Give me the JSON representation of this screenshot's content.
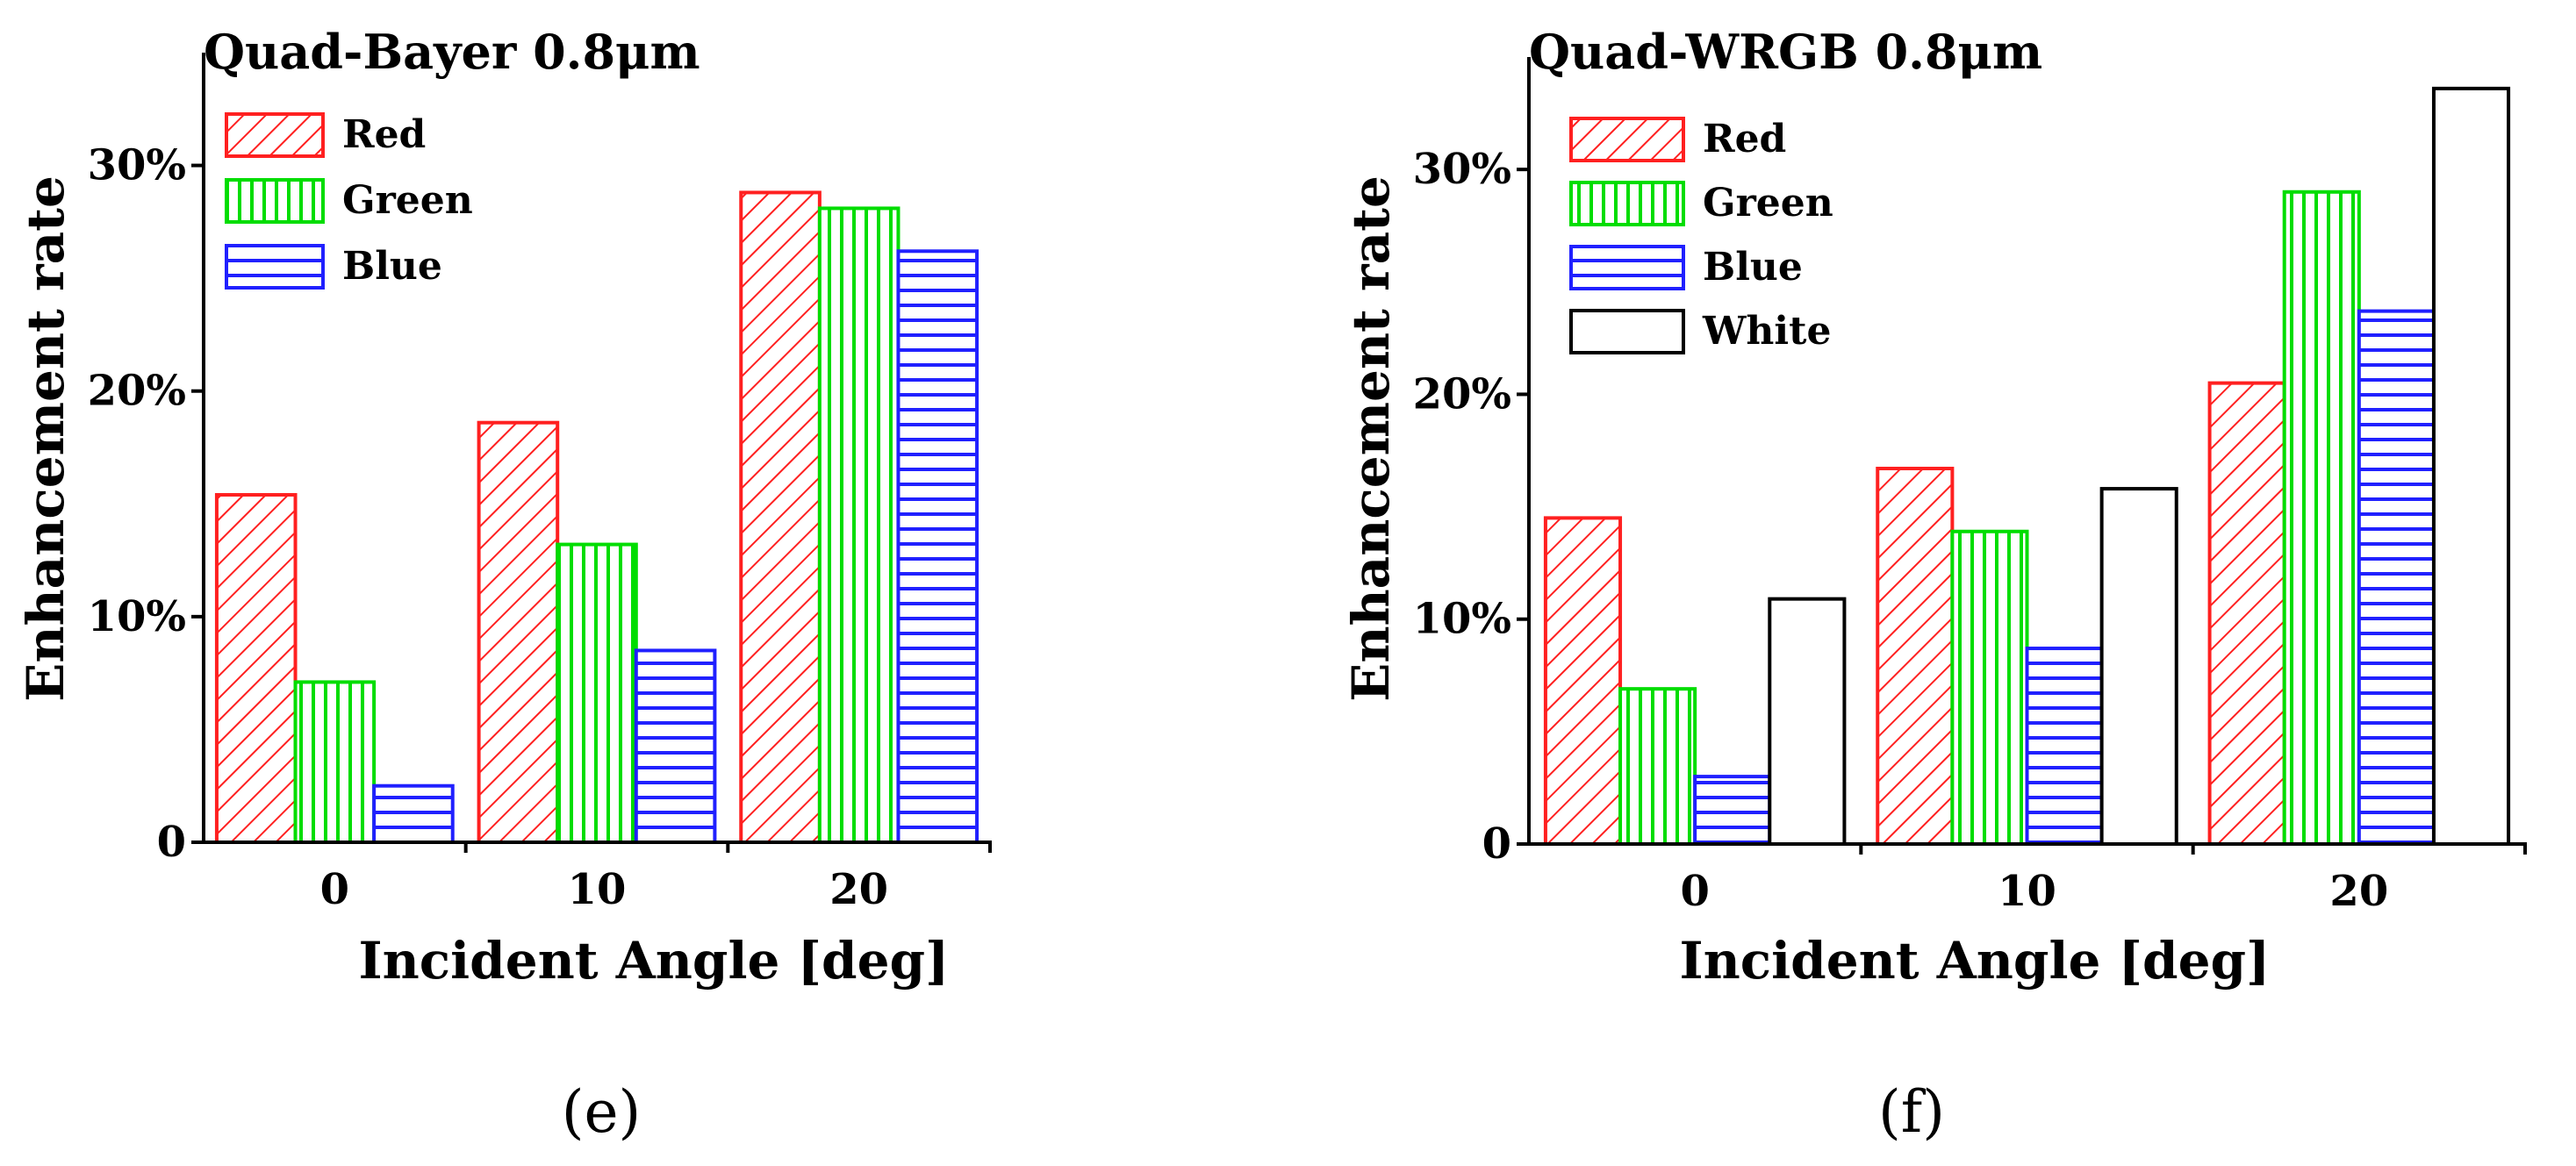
{
  "chart_data": [
    {
      "type": "bar",
      "title": "Quad-Bayer 0.8μm",
      "xlabel": "Incident Angle [deg]",
      "ylabel": "Enhancement rate",
      "categories": [
        "0",
        "10",
        "20"
      ],
      "ylim": [
        0,
        35
      ],
      "yticks": [
        {
          "value": 0,
          "label": "0"
        },
        {
          "value": 10,
          "label": "10%"
        },
        {
          "value": 20,
          "label": "20%"
        },
        {
          "value": 30,
          "label": "30%"
        }
      ],
      "series": [
        {
          "name": "Red",
          "values": [
            15.4,
            18.6,
            28.8
          ],
          "color": "#ff2020",
          "pattern": "diagonal"
        },
        {
          "name": "Green",
          "values": [
            7.1,
            13.2,
            28.1
          ],
          "color": "#00dd00",
          "pattern": "vertical"
        },
        {
          "name": "Blue",
          "values": [
            2.5,
            8.5,
            26.2
          ],
          "color": "#2020ff",
          "pattern": "horizontal"
        }
      ],
      "legend_position": "top-left",
      "grid": false,
      "panel_label": "(e)"
    },
    {
      "type": "bar",
      "title": "Quad-WRGB 0.8μm",
      "xlabel": "Incident Angle [deg]",
      "ylabel": "Enhancement rate",
      "categories": [
        "0",
        "10",
        "20"
      ],
      "ylim": [
        0,
        35
      ],
      "yticks": [
        {
          "value": 0,
          "label": "0"
        },
        {
          "value": 10,
          "label": "10%"
        },
        {
          "value": 20,
          "label": "20%"
        },
        {
          "value": 30,
          "label": "30%"
        }
      ],
      "series": [
        {
          "name": "Red",
          "values": [
            14.5,
            16.7,
            20.5
          ],
          "color": "#ff2020",
          "pattern": "diagonal"
        },
        {
          "name": "Green",
          "values": [
            6.9,
            13.9,
            29.0
          ],
          "color": "#00dd00",
          "pattern": "vertical"
        },
        {
          "name": "Blue",
          "values": [
            3.0,
            8.7,
            23.7
          ],
          "color": "#2020ff",
          "pattern": "horizontal"
        },
        {
          "name": "White",
          "values": [
            10.9,
            15.8,
            33.6
          ],
          "color": "#000000",
          "pattern": "none"
        }
      ],
      "legend_position": "top-left",
      "grid": false,
      "panel_label": "(f)"
    }
  ]
}
